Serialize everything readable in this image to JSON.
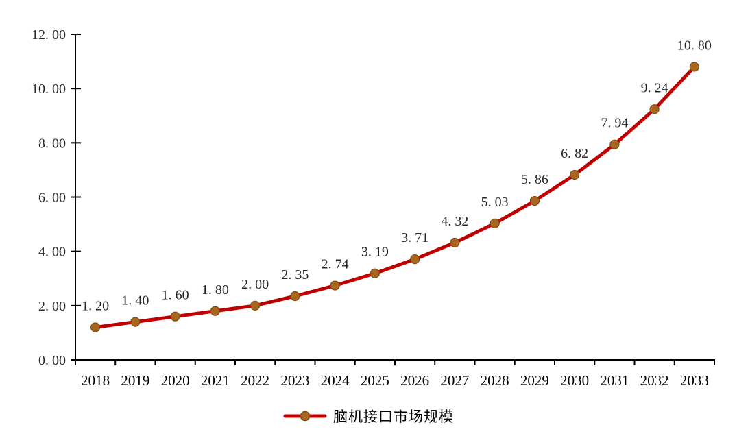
{
  "chart_data": {
    "type": "line",
    "title": "",
    "xlabel": "",
    "ylabel": "",
    "categories": [
      "2018",
      "2019",
      "2020",
      "2021",
      "2022",
      "2023",
      "2024",
      "2025",
      "2026",
      "2027",
      "2028",
      "2029",
      "2030",
      "2031",
      "2032",
      "2033"
    ],
    "series": [
      {
        "name": "脑机接口市场规模",
        "values": [
          1.2,
          1.4,
          1.6,
          1.8,
          2.0,
          2.35,
          2.74,
          3.19,
          3.71,
          4.32,
          5.03,
          5.86,
          6.82,
          7.94,
          9.24,
          10.8
        ],
        "point_labels": [
          "1. 20",
          "1. 40",
          "1. 60",
          "1. 80",
          "2. 00",
          "2. 35",
          "2. 74",
          "3. 19",
          "3. 71",
          "4. 32",
          "5. 03",
          "5. 86",
          "6. 82",
          "7. 94",
          "9. 24",
          "10. 80"
        ]
      }
    ],
    "ylim": [
      0,
      12
    ],
    "y_ticks": {
      "values": [
        0,
        2,
        4,
        6,
        8,
        10,
        12
      ],
      "labels": [
        "0. 00",
        "2. 00",
        "4. 00",
        "6. 00",
        "8. 00",
        "10. 00",
        "12. 00"
      ]
    },
    "grid": false,
    "legend_position": "bottom",
    "colors": {
      "line": "#c00000",
      "marker_fill": "#a9661f",
      "marker_edge": "#7d4a12",
      "axis": "#000000",
      "text": "#262626"
    }
  }
}
